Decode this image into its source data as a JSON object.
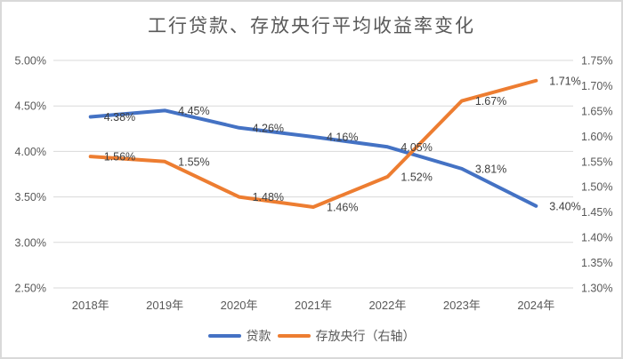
{
  "chart_data": {
    "type": "line",
    "title": "工行贷款、存放央行平均收益率变化",
    "categories": [
      "2018年",
      "2019年",
      "2020年",
      "2021年",
      "2022年",
      "2023年",
      "2024年"
    ],
    "series": [
      {
        "id": "loans",
        "name": "贷款",
        "axis": "left",
        "color": "#4472C4",
        "values": [
          4.38,
          4.45,
          4.26,
          4.16,
          4.05,
          3.81,
          3.4
        ],
        "point_labels": [
          "4.38%",
          "4.45%",
          "4.26%",
          "4.16%",
          "4.05%",
          "3.81%",
          "3.40%"
        ]
      },
      {
        "id": "central-bank-deposits",
        "name": "存放央行（右轴）",
        "axis": "right",
        "color": "#ED7D31",
        "values": [
          1.56,
          1.55,
          1.48,
          1.46,
          1.52,
          1.67,
          1.71
        ],
        "point_labels": [
          "1.56%",
          "1.55%",
          "1.48%",
          "1.46%",
          "1.52%",
          "1.67%",
          "1.71%"
        ]
      }
    ],
    "axes": {
      "left": {
        "min": 2.5,
        "max": 5.0,
        "ticks": [
          "5.00%",
          "4.50%",
          "4.00%",
          "3.50%",
          "3.00%",
          "2.50%"
        ]
      },
      "right": {
        "min": 1.3,
        "max": 1.75,
        "ticks": [
          "1.75%",
          "1.70%",
          "1.65%",
          "1.60%",
          "1.55%",
          "1.50%",
          "1.45%",
          "1.40%",
          "1.35%",
          "1.30%"
        ]
      }
    },
    "grid": "horizontal-only",
    "legend_position": "bottom"
  }
}
